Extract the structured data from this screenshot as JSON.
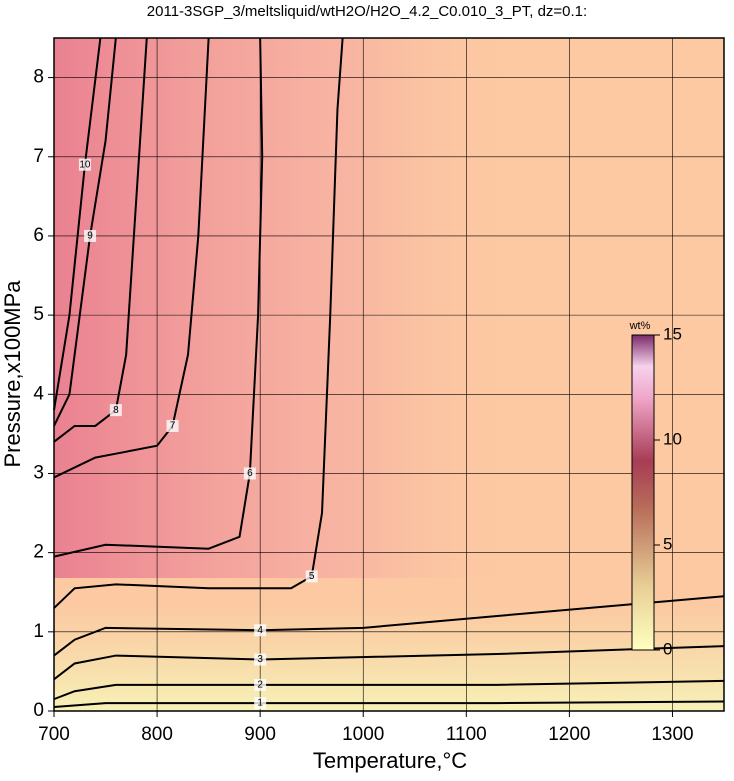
{
  "chart_data": {
    "type": "contour",
    "title": "2011-3SGP_3/meltsliquid/wtH2O/H2O_4.2_C0.010_3_PT, dz=0.1:",
    "x_label": "Temperature,°C",
    "y_label": "Pressure,x100MPa",
    "xlim": [
      700,
      1350
    ],
    "ylim": [
      0,
      8.5
    ],
    "xticks": [
      700,
      800,
      900,
      1000,
      1100,
      1200,
      1300
    ],
    "yticks": [
      0,
      1,
      2,
      3,
      4,
      5,
      6,
      7,
      8
    ],
    "grid": true,
    "colorbar": {
      "label": "wt%",
      "lim": [
        0,
        15
      ],
      "ticks": [
        0,
        5,
        10,
        15
      ]
    },
    "contours": [
      {
        "level": 1,
        "x": [
          700,
          750,
          900,
          1130,
          1350
        ],
        "y": [
          0.05,
          0.1,
          0.1,
          0.1,
          0.12
        ]
      },
      {
        "level": 2,
        "x": [
          700,
          720,
          760,
          900,
          1130,
          1350
        ],
        "y": [
          0.15,
          0.25,
          0.33,
          0.33,
          0.33,
          0.38
        ]
      },
      {
        "level": 3,
        "x": [
          700,
          720,
          760,
          900,
          1130,
          1350
        ],
        "y": [
          0.4,
          0.6,
          0.7,
          0.65,
          0.72,
          0.82
        ]
      },
      {
        "level": 4,
        "x": [
          700,
          720,
          750,
          900,
          1000,
          1130,
          1350
        ],
        "y": [
          0.7,
          0.9,
          1.05,
          1.02,
          1.05,
          1.2,
          1.45
        ]
      },
      {
        "level": 5,
        "x": [
          700,
          720,
          760,
          850,
          930,
          950,
          960,
          968,
          975,
          980
        ],
        "y": [
          1.3,
          1.55,
          1.6,
          1.55,
          1.55,
          1.7,
          2.5,
          5,
          7.6,
          8.5
        ]
      },
      {
        "level": 6,
        "x": [
          700,
          750,
          850,
          880,
          890,
          898,
          902,
          900
        ],
        "y": [
          1.95,
          2.1,
          2.05,
          2.2,
          3,
          5,
          7,
          8.5
        ]
      },
      {
        "level": 7,
        "x": [
          700,
          740,
          760,
          800,
          815,
          830,
          840,
          850
        ],
        "y": [
          2.95,
          3.2,
          3.25,
          3.35,
          3.6,
          4.5,
          6,
          8.5
        ]
      },
      {
        "level": 8,
        "x": [
          700,
          720,
          740,
          760,
          770,
          780,
          790
        ],
        "y": [
          3.4,
          3.6,
          3.6,
          3.8,
          4.5,
          6.5,
          8.5
        ]
      },
      {
        "level": 9,
        "x": [
          700,
          715,
          725,
          735,
          750,
          760
        ],
        "y": [
          3.6,
          4,
          5,
          6,
          7.2,
          8.5
        ]
      },
      {
        "level": 10,
        "x": [
          700,
          715,
          730,
          745
        ],
        "y": [
          3.8,
          5,
          6.9,
          8.5
        ]
      }
    ]
  }
}
